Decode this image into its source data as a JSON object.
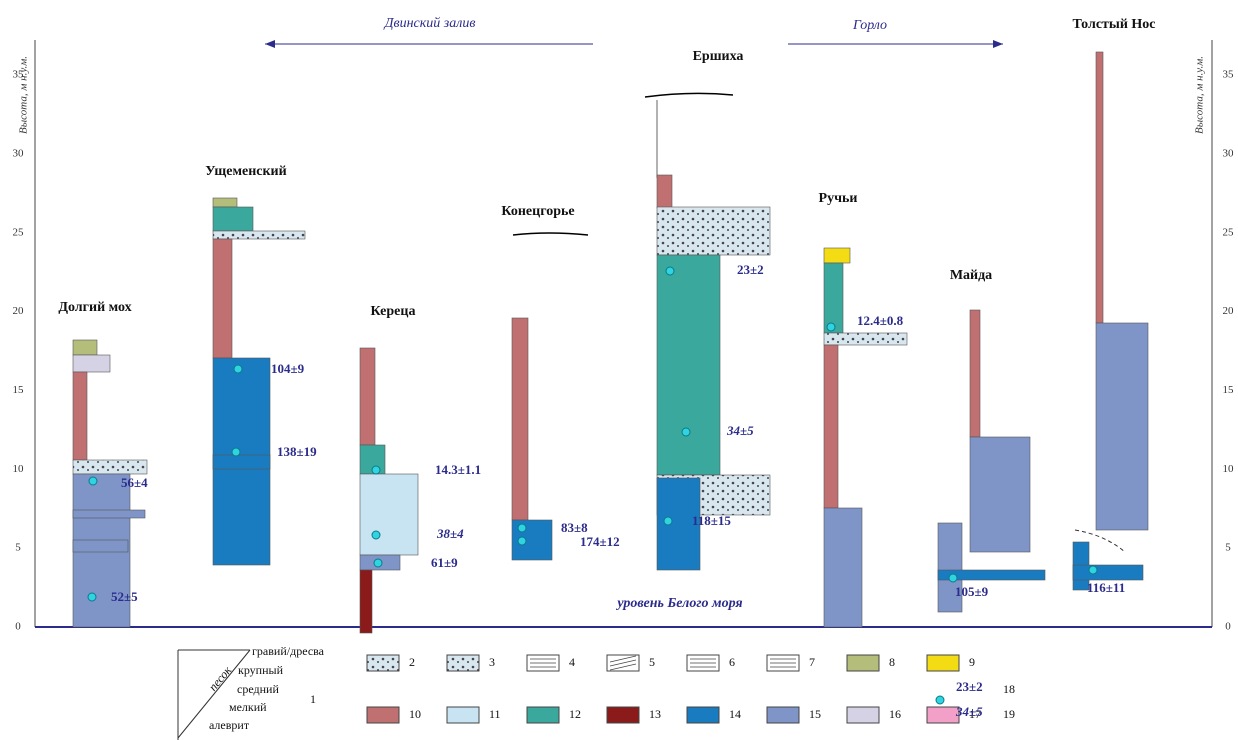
{
  "axis": {
    "label_left": "Высота, м н.у.м.",
    "label_right": "Высота, м н.у.м.",
    "ticks": [
      0,
      5,
      10,
      15,
      20,
      25,
      30,
      35
    ]
  },
  "directions": [
    "Двинский залив",
    "Горло"
  ],
  "columns": [
    {
      "name": "Долгий мох",
      "ages": [
        "56±4",
        "52±5"
      ]
    },
    {
      "name": "Ущеменский",
      "ages": [
        "104±9",
        "138±19"
      ]
    },
    {
      "name": "Кереца",
      "ages": [
        "14.3±1.1",
        "38±4",
        "61±9"
      ]
    },
    {
      "name": "Конецгорье",
      "ages": [
        "83±8",
        "174±12"
      ]
    },
    {
      "name": "Ершиха",
      "ages": [
        "23±2",
        "34±5",
        "118±15"
      ]
    },
    {
      "name": "Ручьи",
      "ages": [
        "12.4±0.8"
      ]
    },
    {
      "name": "Майда",
      "ages": [
        "105±9"
      ]
    },
    {
      "name": "Толстый Нос",
      "ages": [
        "116±11"
      ]
    }
  ],
  "sea_level": "уровень Белого моря",
  "legend": {
    "grain": {
      "number": 1,
      "sand": "песок",
      "sizes": [
        "гравий/дресва",
        "крупный",
        "средний",
        "мелкий",
        "алеврит"
      ]
    },
    "items": [
      2,
      3,
      4,
      5,
      6,
      7,
      8,
      9,
      10,
      11,
      12,
      13,
      14,
      15,
      16,
      17
    ],
    "ages": [
      {
        "label": "23±2",
        "number": 18
      },
      {
        "label": "34±5",
        "number": 19
      }
    ]
  }
}
